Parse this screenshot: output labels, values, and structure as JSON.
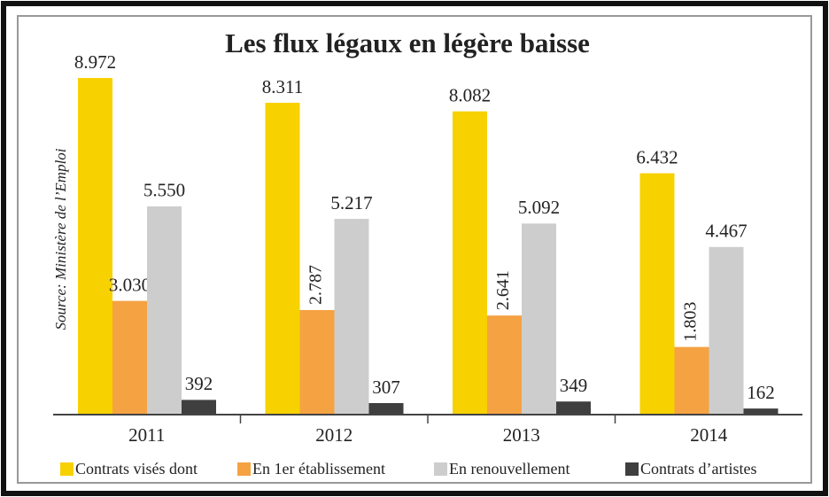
{
  "chart_data": {
    "type": "bar",
    "title": "Les flux légaux en légère baisse",
    "source": "Source: Ministère de l’Emploi",
    "categories": [
      "2011",
      "2012",
      "2013",
      "2014"
    ],
    "series": [
      {
        "name": "Contrats visés dont",
        "color": "#f7d100",
        "values": [
          8972,
          8311,
          8082,
          6432
        ],
        "value_labels": [
          "8.972",
          "8.311",
          "8.082",
          "6.432"
        ]
      },
      {
        "name": "En 1er établissement",
        "color": "#f5a243",
        "values": [
          3030,
          2787,
          2641,
          1803
        ],
        "value_labels": [
          "3.030",
          "2.787",
          "2.641",
          "1.803"
        ]
      },
      {
        "name": "En renouvellement",
        "color": "#cdcdcd",
        "values": [
          5550,
          5217,
          5092,
          4467
        ],
        "value_labels": [
          "5.550",
          "5.217",
          "5.092",
          "4.467"
        ]
      },
      {
        "name": "Contrats d’artistes",
        "color": "#3f3f3f",
        "values": [
          392,
          307,
          349,
          162
        ],
        "value_labels": [
          "392",
          "307",
          "349",
          "162"
        ]
      }
    ]
  }
}
